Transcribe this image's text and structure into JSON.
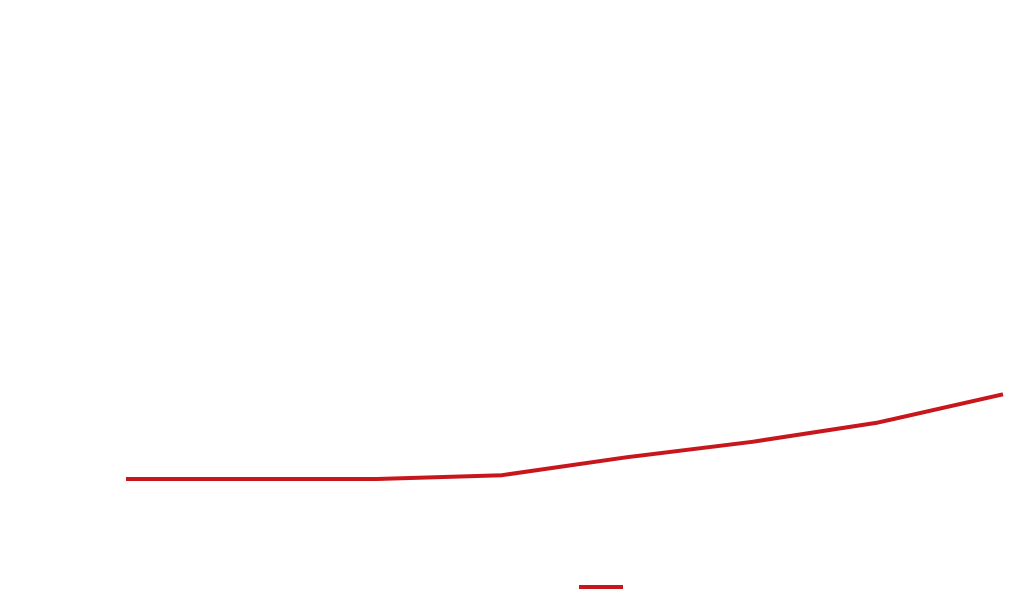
{
  "chart_data": {
    "type": "line",
    "x": [
      0,
      1,
      2,
      3,
      4,
      5,
      6,
      7
    ],
    "series": [
      {
        "values": [
          0.0,
          0.0,
          0.0,
          0.3,
          1.7,
          2.9,
          4.4,
          6.6
        ]
      }
    ],
    "ylim": [
      0,
      35
    ],
    "grid": false,
    "legend": "bottom-center",
    "colors": {
      "series": "#c8161d"
    }
  }
}
